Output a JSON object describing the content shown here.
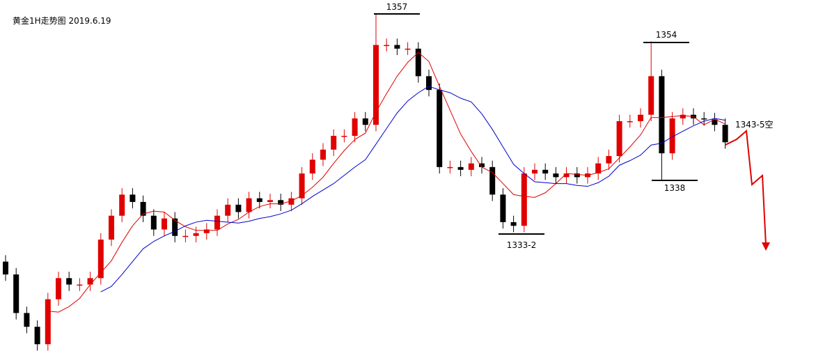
{
  "chart_data": {
    "type": "candlestick",
    "title": "黄金1H走势图 2019.6.19",
    "ylim": [
      1319.5,
      1358.5
    ],
    "up_color": "#e00000",
    "down_color": "#000000",
    "open": [
      1330.0,
      1328.6,
      1324.4,
      1322.9,
      1321.0,
      1325.9,
      1328.2,
      1327.5,
      1327.5,
      1328.2,
      1332.4,
      1335.0,
      1337.3,
      1336.5,
      1335.0,
      1333.5,
      1334.7,
      1332.8,
      1332.8,
      1333.1,
      1333.5,
      1335.0,
      1336.2,
      1335.4,
      1336.9,
      1336.5,
      1336.7,
      1336.2,
      1336.9,
      1339.6,
      1341.1,
      1342.2,
      1343.7,
      1343.7,
      1345.6,
      1344.9,
      1353.6,
      1353.6,
      1353.2,
      1353.2,
      1350.2,
      1348.7,
      1340.3,
      1340.3,
      1340.0,
      1340.7,
      1340.3,
      1337.3,
      1334.3,
      1333.9,
      1339.6,
      1340.0,
      1339.6,
      1339.2,
      1339.6,
      1339.2,
      1339.6,
      1340.7,
      1341.5,
      1345.3,
      1345.3,
      1346.0,
      1350.2,
      1341.8,
      1345.6,
      1346.0,
      1345.6,
      1345.5,
      1344.9
    ],
    "high": [
      1330.7,
      1329.3,
      1325.1,
      1323.6,
      1326.6,
      1328.9,
      1328.9,
      1328.2,
      1328.9,
      1333.1,
      1335.7,
      1338.0,
      1338.0,
      1337.2,
      1335.7,
      1335.4,
      1335.4,
      1333.5,
      1333.8,
      1334.2,
      1335.7,
      1336.9,
      1336.9,
      1337.6,
      1337.6,
      1337.4,
      1337.4,
      1337.6,
      1340.3,
      1341.8,
      1342.9,
      1344.4,
      1344.4,
      1346.3,
      1346.3,
      1357.0,
      1354.3,
      1354.3,
      1353.9,
      1353.9,
      1350.9,
      1349.4,
      1341.0,
      1341.0,
      1341.4,
      1341.4,
      1341.0,
      1338.0,
      1335.0,
      1340.3,
      1340.7,
      1340.7,
      1340.3,
      1340.3,
      1340.3,
      1340.3,
      1341.4,
      1342.2,
      1346.0,
      1346.0,
      1346.7,
      1354.0,
      1350.9,
      1346.3,
      1346.7,
      1346.7,
      1346.3,
      1346.2,
      1345.6
    ],
    "low": [
      1327.9,
      1323.7,
      1322.2,
      1320.3,
      1320.3,
      1325.2,
      1326.8,
      1326.8,
      1326.8,
      1327.5,
      1331.7,
      1334.3,
      1335.8,
      1334.3,
      1332.8,
      1332.8,
      1332.1,
      1332.1,
      1332.1,
      1332.4,
      1332.8,
      1334.3,
      1334.7,
      1334.7,
      1335.8,
      1335.8,
      1335.5,
      1335.5,
      1336.2,
      1338.9,
      1340.4,
      1341.5,
      1343.0,
      1343.0,
      1344.2,
      1344.2,
      1352.9,
      1352.5,
      1352.5,
      1349.5,
      1348.0,
      1339.6,
      1339.6,
      1339.3,
      1339.3,
      1339.6,
      1336.6,
      1333.6,
      1333.2,
      1333.2,
      1338.9,
      1338.9,
      1338.5,
      1338.5,
      1338.5,
      1338.5,
      1338.9,
      1340.0,
      1340.8,
      1344.6,
      1344.6,
      1345.3,
      1338.8,
      1341.1,
      1344.9,
      1344.9,
      1344.8,
      1344.2,
      1342.3
    ],
    "close": [
      1328.6,
      1324.4,
      1322.9,
      1321.0,
      1325.9,
      1328.2,
      1327.5,
      1327.5,
      1328.2,
      1332.4,
      1335.0,
      1337.3,
      1336.5,
      1335.0,
      1333.5,
      1334.7,
      1332.8,
      1332.8,
      1333.1,
      1333.5,
      1335.0,
      1336.2,
      1335.4,
      1336.9,
      1336.5,
      1336.7,
      1336.2,
      1336.9,
      1339.6,
      1341.1,
      1342.2,
      1343.7,
      1343.7,
      1345.6,
      1344.9,
      1353.6,
      1353.6,
      1353.2,
      1353.2,
      1350.2,
      1348.7,
      1340.3,
      1340.3,
      1340.0,
      1340.7,
      1340.3,
      1337.3,
      1334.3,
      1333.9,
      1339.6,
      1340.0,
      1339.6,
      1339.2,
      1339.6,
      1339.2,
      1339.6,
      1340.7,
      1341.5,
      1345.3,
      1345.3,
      1346.0,
      1350.2,
      1341.8,
      1345.6,
      1346.0,
      1345.6,
      1345.5,
      1344.9,
      1343.0
    ],
    "lines": [
      {
        "color": "#e00000",
        "values": [
          null,
          null,
          null,
          null,
          1324.6,
          1324.5,
          1325.1,
          1326.0,
          1327.5,
          1328.8,
          1330.1,
          1332.1,
          1333.9,
          1335.2,
          1335.5,
          1335.4,
          1334.5,
          1333.8,
          1333.4,
          1333.4,
          1333.4,
          1334.1,
          1334.6,
          1335.4,
          1336.0,
          1336.3,
          1336.3,
          1336.6,
          1337.2,
          1338.1,
          1339.2,
          1340.7,
          1342.1,
          1343.3,
          1344.0,
          1346.3,
          1348.3,
          1350.2,
          1351.7,
          1352.8,
          1351.8,
          1349.1,
          1346.5,
          1343.9,
          1342.0,
          1340.3,
          1339.7,
          1338.5,
          1337.3,
          1337.1,
          1337.0,
          1337.5,
          1338.5,
          1339.6,
          1339.5,
          1339.4,
          1339.7,
          1340.1,
          1341.3,
          1342.5,
          1343.8,
          1345.7,
          1345.7,
          1345.8,
          1345.9,
          1345.8,
          1344.9,
          1345.5,
          1345.0
        ]
      },
      {
        "color": "#0000cc",
        "values": [
          null,
          null,
          null,
          null,
          null,
          null,
          null,
          null,
          null,
          1326.7,
          1327.3,
          1328.6,
          1330.0,
          1331.4,
          1332.2,
          1332.8,
          1333.3,
          1333.9,
          1334.3,
          1334.5,
          1334.4,
          1334.3,
          1334.2,
          1334.4,
          1334.7,
          1334.9,
          1335.2,
          1335.6,
          1336.3,
          1337.1,
          1337.8,
          1338.5,
          1339.4,
          1340.3,
          1341.1,
          1342.8,
          1344.5,
          1346.2,
          1347.5,
          1348.4,
          1349.1,
          1348.7,
          1348.4,
          1347.8,
          1347.4,
          1346.1,
          1344.4,
          1342.5,
          1340.6,
          1339.6,
          1338.7,
          1338.6,
          1338.5,
          1338.5,
          1338.3,
          1338.2,
          1338.6,
          1339.3,
          1340.5,
          1341.0,
          1341.6,
          1342.7,
          1342.9,
          1343.6,
          1344.2,
          1344.8,
          1345.3,
          1345.6,
          1345.4
        ]
      }
    ],
    "annotations": [
      "1357",
      "1354",
      "1333-2",
      "1338",
      "1343-5空"
    ]
  }
}
